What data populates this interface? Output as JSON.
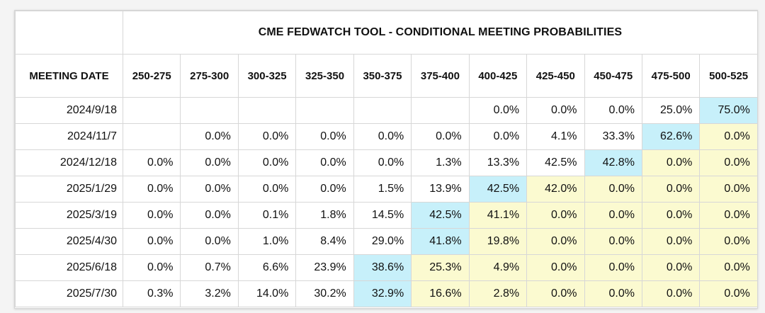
{
  "title": "CME FEDWATCH TOOL - CONDITIONAL MEETING PROBABILITIES",
  "colors": {
    "highlight_max": "#c7f0fa",
    "highlight_above": "#fbfad0",
    "border": "#d7d7d7",
    "background": "#ffffff"
  },
  "columns": {
    "date_header": "MEETING DATE",
    "bins": [
      "250-275",
      "275-300",
      "300-325",
      "325-350",
      "350-375",
      "375-400",
      "400-425",
      "425-450",
      "450-475",
      "475-500",
      "500-525"
    ]
  },
  "rows": [
    {
      "date": "2024/9/18",
      "values": [
        "",
        "",
        "",
        "",
        "",
        "",
        "0.0%",
        "0.0%",
        "0.0%",
        "25.0%",
        "75.0%"
      ],
      "highlights": [
        "",
        "",
        "",
        "",
        "",
        "",
        "",
        "",
        "",
        "",
        "blue"
      ]
    },
    {
      "date": "2024/11/7",
      "values": [
        "",
        "0.0%",
        "0.0%",
        "0.0%",
        "0.0%",
        "0.0%",
        "0.0%",
        "4.1%",
        "33.3%",
        "62.6%",
        "0.0%"
      ],
      "highlights": [
        "",
        "",
        "",
        "",
        "",
        "",
        "",
        "",
        "",
        "blue",
        "yellow"
      ]
    },
    {
      "date": "2024/12/18",
      "values": [
        "0.0%",
        "0.0%",
        "0.0%",
        "0.0%",
        "0.0%",
        "1.3%",
        "13.3%",
        "42.5%",
        "42.8%",
        "0.0%",
        "0.0%"
      ],
      "highlights": [
        "",
        "",
        "",
        "",
        "",
        "",
        "",
        "",
        "blue",
        "yellow",
        "yellow"
      ]
    },
    {
      "date": "2025/1/29",
      "values": [
        "0.0%",
        "0.0%",
        "0.0%",
        "0.0%",
        "1.5%",
        "13.9%",
        "42.5%",
        "42.0%",
        "0.0%",
        "0.0%",
        "0.0%"
      ],
      "highlights": [
        "",
        "",
        "",
        "",
        "",
        "",
        "blue",
        "yellow",
        "yellow",
        "yellow",
        "yellow"
      ]
    },
    {
      "date": "2025/3/19",
      "values": [
        "0.0%",
        "0.0%",
        "0.1%",
        "1.8%",
        "14.5%",
        "42.5%",
        "41.1%",
        "0.0%",
        "0.0%",
        "0.0%",
        "0.0%"
      ],
      "highlights": [
        "",
        "",
        "",
        "",
        "",
        "blue",
        "yellow",
        "yellow",
        "yellow",
        "yellow",
        "yellow"
      ]
    },
    {
      "date": "2025/4/30",
      "values": [
        "0.0%",
        "0.0%",
        "1.0%",
        "8.4%",
        "29.0%",
        "41.8%",
        "19.8%",
        "0.0%",
        "0.0%",
        "0.0%",
        "0.0%"
      ],
      "highlights": [
        "",
        "",
        "",
        "",
        "",
        "blue",
        "yellow",
        "yellow",
        "yellow",
        "yellow",
        "yellow"
      ]
    },
    {
      "date": "2025/6/18",
      "values": [
        "0.0%",
        "0.7%",
        "6.6%",
        "23.9%",
        "38.6%",
        "25.3%",
        "4.9%",
        "0.0%",
        "0.0%",
        "0.0%",
        "0.0%"
      ],
      "highlights": [
        "",
        "",
        "",
        "",
        "blue",
        "yellow",
        "yellow",
        "yellow",
        "yellow",
        "yellow",
        "yellow"
      ]
    },
    {
      "date": "2025/7/30",
      "values": [
        "0.3%",
        "3.2%",
        "14.0%",
        "30.2%",
        "32.9%",
        "16.6%",
        "2.8%",
        "0.0%",
        "0.0%",
        "0.0%",
        "0.0%"
      ],
      "highlights": [
        "",
        "",
        "",
        "",
        "blue",
        "yellow",
        "yellow",
        "yellow",
        "yellow",
        "yellow",
        "yellow"
      ]
    }
  ]
}
